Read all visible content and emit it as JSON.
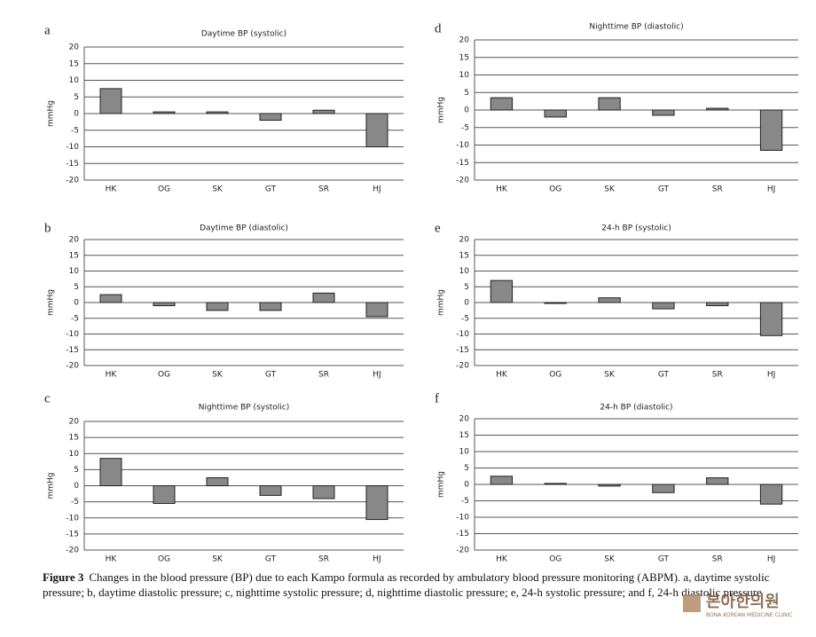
{
  "chart_data": [
    {
      "panel": "a",
      "type": "bar",
      "title": "Daytime BP (systolic)",
      "y_label": "mmHg",
      "categories": [
        "HK",
        "OG",
        "SK",
        "GT",
        "SR",
        "HJ"
      ],
      "values": [
        7.5,
        0.5,
        0.5,
        -2,
        1,
        -10
      ],
      "color": "#888888",
      "ylim": [
        -20,
        20
      ],
      "yticks": [
        -20,
        -15,
        -10,
        -5,
        0,
        5,
        10,
        15,
        20
      ],
      "grid": true
    },
    {
      "panel": "b",
      "type": "bar",
      "title": "Daytime BP (diastolic)",
      "y_label": "mmHg",
      "categories": [
        "HK",
        "OG",
        "SK",
        "GT",
        "SR",
        "HJ"
      ],
      "values": [
        2.5,
        -1,
        -2.5,
        -2.5,
        3,
        -4.5
      ],
      "color": "#888888",
      "ylim": [
        -20,
        20
      ],
      "yticks": [
        -20,
        -15,
        -10,
        -5,
        0,
        5,
        10,
        15,
        20
      ],
      "grid": true
    },
    {
      "panel": "c",
      "type": "bar",
      "title": "Nighttime BP (systolic)",
      "y_label": "mmHg",
      "categories": [
        "HK",
        "OG",
        "SK",
        "GT",
        "SR",
        "HJ"
      ],
      "values": [
        8.5,
        -5.5,
        2.5,
        -3,
        -4,
        -10.5
      ],
      "color": "#888888",
      "ylim": [
        -20,
        20
      ],
      "yticks": [
        -20,
        -15,
        -10,
        -5,
        0,
        5,
        10,
        15,
        20
      ],
      "grid": true
    },
    {
      "panel": "d",
      "type": "bar",
      "title": "Nighttime BP (diastolic)",
      "y_label": "mmHg",
      "categories": [
        "HK",
        "OG",
        "SK",
        "GT",
        "SR",
        "HJ"
      ],
      "values": [
        3.5,
        -2,
        3.5,
        -1.5,
        0.5,
        -11.5
      ],
      "color": "#888888",
      "ylim": [
        -20,
        20
      ],
      "yticks": [
        -20,
        -15,
        -10,
        -5,
        0,
        5,
        10,
        15,
        20
      ],
      "grid": true
    },
    {
      "panel": "e",
      "type": "bar",
      "title": "24-h BP (systolic)",
      "y_label": "mmHg",
      "categories": [
        "HK",
        "OG",
        "SK",
        "GT",
        "SR",
        "HJ"
      ],
      "values": [
        7,
        -0.3,
        1.5,
        -2,
        -1,
        -10.5
      ],
      "color": "#888888",
      "ylim": [
        -20,
        20
      ],
      "yticks": [
        -20,
        -15,
        -10,
        -5,
        0,
        5,
        10,
        15,
        20
      ],
      "grid": true
    },
    {
      "panel": "f",
      "type": "bar",
      "title": "24-h BP (diastolic)",
      "y_label": "mmHg",
      "categories": [
        "HK",
        "OG",
        "SK",
        "GT",
        "SR",
        "HJ"
      ],
      "values": [
        2.5,
        0.3,
        -0.5,
        -2.5,
        2,
        -6
      ],
      "color": "#888888",
      "ylim": [
        -20,
        20
      ],
      "yticks": [
        -20,
        -15,
        -10,
        -5,
        0,
        5,
        10,
        15,
        20
      ],
      "grid": true
    }
  ],
  "caption_label": "Figure 3",
  "caption_text": "Changes in the blood pressure (BP) due to each Kampo formula as recorded by ambulatory blood pressure monitoring (ABPM). a, daytime systolic pressure; b, daytime diastolic pressure; c, nighttime systolic pressure; d, nighttime diastolic pressure; e, 24-h systolic pressure; and f, 24-h diastolic pressure",
  "watermark": {
    "name": "본아한의원",
    "subtitle": "BONA KOREAN MEDICINE CLINIC"
  }
}
